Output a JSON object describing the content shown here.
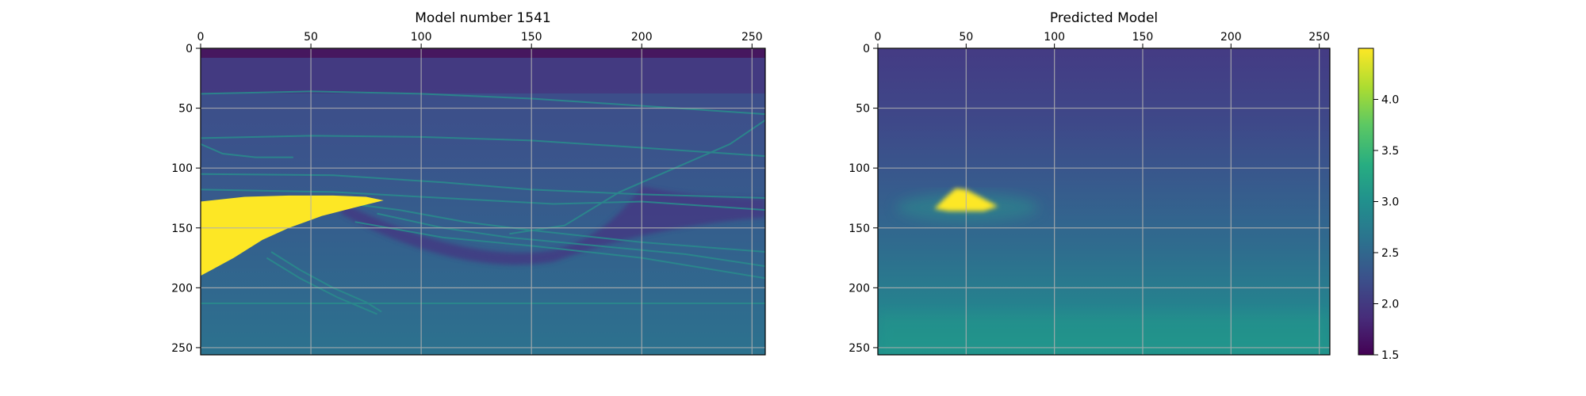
{
  "chart_data": [
    {
      "type": "heatmap",
      "title": "Model number 1541",
      "xlabel": "",
      "ylabel": "",
      "xlim": [
        0,
        256
      ],
      "ylim": [
        256,
        0
      ],
      "xticks": [
        0,
        50,
        100,
        150,
        200,
        250
      ],
      "yticks": [
        0,
        50,
        100,
        150,
        200,
        250
      ],
      "x_axis_position": "top",
      "grid": true,
      "colormap": "viridis",
      "vmin": 1.5,
      "vmax": 4.5,
      "features": {
        "top_water_layer_value": 1.55,
        "salt_body_value": 4.5,
        "salt_body_outline": [
          [
            0,
            128
          ],
          [
            20,
            124
          ],
          [
            40,
            123
          ],
          [
            60,
            123
          ],
          [
            75,
            124
          ],
          [
            83,
            127
          ],
          [
            72,
            132
          ],
          [
            55,
            140
          ],
          [
            40,
            150
          ],
          [
            28,
            160
          ],
          [
            15,
            175
          ],
          [
            5,
            185
          ],
          [
            0,
            190
          ]
        ],
        "background_value_top": 1.9,
        "background_value_bottom": 2.75,
        "reflector_value": 2.8
      }
    },
    {
      "type": "heatmap",
      "title": "Predicted Model",
      "xlabel": "",
      "ylabel": "",
      "xlim": [
        0,
        256
      ],
      "ylim": [
        256,
        0
      ],
      "xticks": [
        0,
        50,
        100,
        150,
        200,
        250
      ],
      "yticks": [
        0,
        50,
        100,
        150,
        200,
        250
      ],
      "x_axis_position": "top",
      "grid": true,
      "colormap": "viridis",
      "vmin": 1.5,
      "vmax": 4.5,
      "features": {
        "salt_body_value": 4.5,
        "salt_body_outline": [
          [
            32,
            134
          ],
          [
            38,
            125
          ],
          [
            44,
            117
          ],
          [
            50,
            118
          ],
          [
            58,
            124
          ],
          [
            68,
            132
          ],
          [
            60,
            136
          ],
          [
            40,
            136
          ]
        ],
        "background_value_top": 1.75,
        "background_value_bottom": 3.05
      }
    }
  ],
  "colorbar": {
    "ticks": [
      "4.0",
      "3.5",
      "3.0",
      "2.5",
      "2.0",
      "1.5"
    ],
    "tick_values": [
      4.0,
      3.5,
      3.0,
      2.5,
      2.0,
      1.5
    ],
    "vmin": 1.5,
    "vmax": 4.5
  }
}
